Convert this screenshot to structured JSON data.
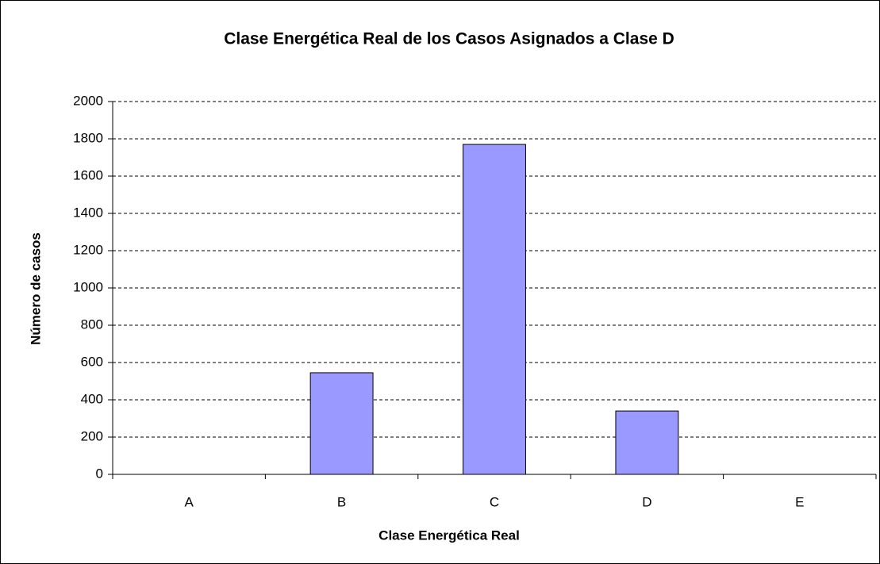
{
  "chart_data": {
    "type": "bar",
    "title": "Clase Energética Real de los Casos Asignados a Clase D",
    "x_label": "Clase Energética Real",
    "y_label": "Número de casos",
    "categories": [
      "A",
      "B",
      "C",
      "D",
      "E"
    ],
    "values": [
      0,
      545,
      1770,
      340,
      0
    ],
    "color": "#9999ff",
    "ylim": [
      0,
      2000
    ],
    "yticks": [
      0,
      200,
      400,
      600,
      800,
      1000,
      1200,
      1400,
      1600,
      1800,
      2000
    ],
    "grid": true
  }
}
